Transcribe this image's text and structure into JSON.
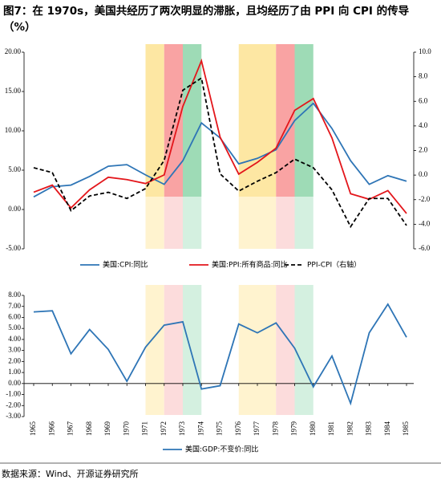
{
  "title": [
    "图7：在 1970s，美国共经历了两次明显的滞胀，且均经历了由 PPI 向 CPI 的传导",
    "（%）"
  ],
  "source": "数据来源：Wind、开源证券研究所",
  "highlight_periods": [
    {
      "from": "1971",
      "to": "1972",
      "color": "#fde7a3",
      "light": "#fff3cf"
    },
    {
      "from": "1972",
      "to": "1973",
      "color": "#f9a3a3",
      "light": "#fcdcdc"
    },
    {
      "from": "1973",
      "to": "1974",
      "color": "#9edbb6",
      "light": "#d4f0e0"
    },
    {
      "from": "1976",
      "to": "1978",
      "color": "#fde7a3",
      "light": "#fff3cf"
    },
    {
      "from": "1978",
      "to": "1979",
      "color": "#f9a3a3",
      "light": "#fcdcdc"
    },
    {
      "from": "1979",
      "to": "1980",
      "color": "#9edbb6",
      "light": "#d4f0e0"
    }
  ],
  "chart_data": [
    {
      "type": "line",
      "ylim": [
        -5,
        20
      ],
      "yticks": [
        {
          "value": -5,
          "label": "-5.00"
        },
        {
          "value": 0,
          "label": "0.00"
        },
        {
          "value": 5,
          "label": "5.00"
        },
        {
          "value": 10,
          "label": "10.00"
        },
        {
          "value": 15,
          "label": "15.00"
        },
        {
          "value": 20,
          "label": "20.00"
        }
      ],
      "y2lim": [
        -6,
        10
      ],
      "y2ticks": [
        {
          "value": -6,
          "label": "-6.0"
        },
        {
          "value": -4,
          "label": "-4.0"
        },
        {
          "value": -2,
          "label": "-2.0"
        },
        {
          "value": 0,
          "label": "0.0"
        },
        {
          "value": 2,
          "label": "2.0"
        },
        {
          "value": 4,
          "label": "4.0"
        },
        {
          "value": 6,
          "label": "6.0"
        },
        {
          "value": 8,
          "label": "8.0"
        },
        {
          "value": 10,
          "label": "10.0"
        }
      ],
      "series": [
        {
          "name": "美国:CPI:同比",
          "color": "#2e75b6",
          "style": "solid",
          "values": [
            1.6,
            2.9,
            3.1,
            4.2,
            5.5,
            5.7,
            4.4,
            3.2,
            6.2,
            11.0,
            9.1,
            5.8,
            6.5,
            7.6,
            11.3,
            13.5,
            10.3,
            6.2,
            3.2,
            4.3,
            3.6
          ]
        },
        {
          "name": "美国:PPI:所有商品:同比",
          "color": "#e3161b",
          "style": "solid",
          "values": [
            2.2,
            3.1,
            0.2,
            2.5,
            4.1,
            3.8,
            3.3,
            4.4,
            13.1,
            18.9,
            9.2,
            4.5,
            6.0,
            7.8,
            12.6,
            14.1,
            9.1,
            2.0,
            1.3,
            2.4,
            -0.5
          ]
        },
        {
          "name": "PPI-CPI（右轴）",
          "color": "#000000",
          "style": "dashed",
          "axis": "y2",
          "values": [
            0.6,
            0.2,
            -2.9,
            -1.7,
            -1.4,
            -1.9,
            -1.1,
            1.2,
            6.9,
            7.9,
            0.1,
            -1.3,
            -0.5,
            0.2,
            1.3,
            0.6,
            -1.2,
            -4.2,
            -1.9,
            -1.9,
            -4.1
          ]
        }
      ]
    },
    {
      "type": "line",
      "categories": [
        "1965",
        "1966",
        "1967",
        "1968",
        "1969",
        "1970",
        "1971",
        "1972",
        "1973",
        "1974",
        "1975",
        "1976",
        "1977",
        "1978",
        "1979",
        "1980",
        "1981",
        "1982",
        "1983",
        "1984",
        "1985"
      ],
      "ylim": [
        -3,
        8
      ],
      "yticks": [
        {
          "value": -3,
          "label": "-3.00"
        },
        {
          "value": -2,
          "label": "-2.00"
        },
        {
          "value": -1,
          "label": "-1.00"
        },
        {
          "value": 0,
          "label": "0.00"
        },
        {
          "value": 1,
          "label": "1.00"
        },
        {
          "value": 2,
          "label": "2.00"
        },
        {
          "value": 3,
          "label": "3.00"
        },
        {
          "value": 4,
          "label": "4.00"
        },
        {
          "value": 5,
          "label": "5.00"
        },
        {
          "value": 6,
          "label": "6.00"
        },
        {
          "value": 7,
          "label": "7.00"
        },
        {
          "value": 8,
          "label": "8.00"
        }
      ],
      "series": [
        {
          "name": "美国:GDP:不变价:同比",
          "color": "#2e75b6",
          "style": "solid",
          "values": [
            6.5,
            6.6,
            2.7,
            4.9,
            3.1,
            0.2,
            3.3,
            5.3,
            5.6,
            -0.5,
            -0.2,
            5.4,
            4.6,
            5.5,
            3.2,
            -0.3,
            2.5,
            -1.8,
            4.6,
            7.2,
            4.2
          ]
        }
      ]
    }
  ]
}
